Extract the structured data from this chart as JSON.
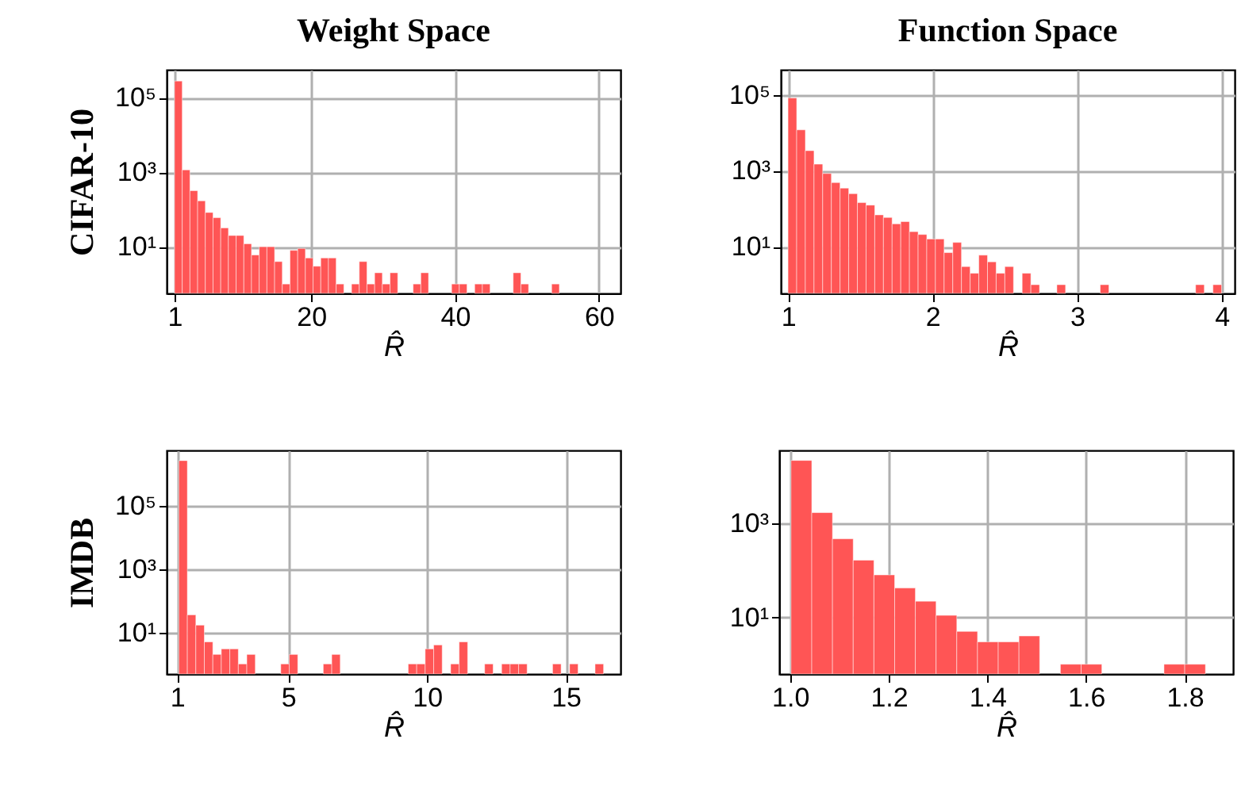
{
  "chart_data": [
    {
      "type": "histogram",
      "title": "Weight Space",
      "ylabel": "CIFAR-10",
      "xlabel": "R̂",
      "color": "#ff5555",
      "log": true,
      "grid": true,
      "bins": [
        1.0,
        2.07,
        3.14,
        4.21,
        5.28,
        6.35,
        7.42,
        8.49,
        9.56,
        10.63,
        11.7,
        12.77,
        13.84,
        14.91,
        15.98,
        17.05,
        18.12,
        19.19,
        20.26,
        21.33,
        22.4,
        23.47,
        24.54,
        25.61,
        26.68,
        27.75,
        28.82,
        29.89,
        30.96,
        32.03,
        33.1,
        34.17,
        35.24,
        36.31,
        37.38,
        38.45,
        39.52,
        40.59,
        41.66,
        42.73,
        43.8,
        44.87,
        45.94,
        47.01,
        48.08,
        49.15,
        50.22,
        51.29,
        52.36,
        53.43,
        54.5
      ],
      "values": [
        280000,
        1150,
        320,
        170,
        83,
        60,
        32,
        20,
        20,
        12,
        6,
        10,
        10,
        4,
        1,
        8,
        9,
        5,
        3,
        5,
        5,
        1,
        null,
        1,
        4,
        1,
        2,
        1,
        2,
        null,
        null,
        1,
        2,
        null,
        null,
        null,
        1,
        1,
        null,
        1,
        1,
        null,
        null,
        null,
        2,
        1,
        null,
        null,
        null,
        1
      ],
      "xlim": [
        -0.1,
        63
      ],
      "xticks": [
        1,
        20,
        40,
        60
      ],
      "ylim": [
        0.56,
        560000
      ],
      "yticks": [
        {
          "value": 10,
          "label": "10¹"
        },
        {
          "value": 1000,
          "label": "10³"
        },
        {
          "value": 100000,
          "label": "10⁵"
        }
      ]
    },
    {
      "type": "histogram",
      "title": "Function Space",
      "xlabel": "R̂",
      "color": "#ff5555",
      "log": true,
      "grid": true,
      "bins": [
        1.0,
        1.06,
        1.12,
        1.18,
        1.24,
        1.3,
        1.36,
        1.42,
        1.48,
        1.54,
        1.6,
        1.66,
        1.72,
        1.78,
        1.84,
        1.9,
        1.96,
        2.02,
        2.08,
        2.14,
        2.2,
        2.26,
        2.32,
        2.38,
        2.44,
        2.5,
        2.56,
        2.62,
        2.68,
        2.74,
        2.8,
        2.86,
        2.92,
        2.98,
        3.04,
        3.1,
        3.16,
        3.22,
        3.28,
        3.34,
        3.4,
        3.46,
        3.52,
        3.58,
        3.64,
        3.7,
        3.76,
        3.82,
        3.88,
        3.94,
        4.0
      ],
      "values": [
        83000,
        12000,
        3400,
        1500,
        850,
        490,
        350,
        250,
        145,
        125,
        69,
        59,
        40,
        46,
        25,
        21,
        16,
        16,
        7,
        13,
        3,
        2,
        6,
        4,
        2,
        3,
        null,
        2,
        1,
        null,
        null,
        1,
        null,
        null,
        null,
        null,
        1,
        null,
        null,
        null,
        null,
        null,
        null,
        null,
        null,
        null,
        null,
        1,
        null,
        1
      ],
      "xlim": [
        0.95,
        4.09
      ],
      "xticks": [
        1,
        2,
        3,
        4
      ],
      "ylim": [
        0.59,
        460000
      ],
      "yticks": [
        {
          "value": 10,
          "label": "10¹"
        },
        {
          "value": 1000,
          "label": "10³"
        },
        {
          "value": 100000,
          "label": "10⁵"
        }
      ]
    },
    {
      "type": "histogram",
      "ylabel": "IMDB",
      "xlabel": "R̂",
      "color": "#ff5555",
      "log": true,
      "grid": true,
      "bins": [
        1.06,
        1.366,
        1.672,
        1.978,
        2.284,
        2.59,
        2.896,
        3.202,
        3.508,
        3.814,
        4.12,
        4.426,
        4.732,
        5.038,
        5.344,
        5.65,
        5.956,
        6.262,
        6.568,
        6.874,
        7.18,
        7.486,
        7.792,
        8.098,
        8.404,
        8.71,
        9.016,
        9.322,
        9.628,
        9.934,
        10.24,
        10.546,
        10.852,
        11.158,
        11.464,
        11.77,
        12.076,
        12.382,
        12.688,
        12.994,
        13.3,
        13.606,
        13.912,
        14.218,
        14.524,
        14.83,
        15.136,
        15.442,
        15.748,
        16.054,
        16.36
      ],
      "values": [
        2800000,
        36,
        17,
        5,
        2,
        3,
        3,
        1,
        2,
        null,
        null,
        null,
        1,
        2,
        null,
        null,
        null,
        1,
        2,
        null,
        null,
        null,
        null,
        null,
        null,
        null,
        null,
        1,
        1,
        3,
        4,
        null,
        1,
        5,
        null,
        null,
        1,
        null,
        1,
        1,
        1,
        null,
        null,
        null,
        1,
        null,
        1,
        null,
        null,
        1
      ],
      "xlim": [
        0.62,
        16.97
      ],
      "xticks": [
        1,
        5,
        10,
        15
      ],
      "ylim": [
        0.48,
        5900000
      ],
      "yticks": [
        {
          "value": 10,
          "label": "10¹"
        },
        {
          "value": 1000,
          "label": "10³"
        },
        {
          "value": 100000,
          "label": "10⁵"
        }
      ]
    },
    {
      "type": "histogram",
      "xlabel": "R̂",
      "color": "#ff5555",
      "log": true,
      "grid": true,
      "bins": [
        1.002,
        1.044,
        1.086,
        1.128,
        1.17,
        1.212,
        1.254,
        1.296,
        1.338,
        1.38,
        1.422,
        1.464,
        1.506,
        1.548,
        1.59,
        1.632,
        1.674,
        1.716,
        1.758,
        1.8,
        1.842
      ],
      "values": [
        22000,
        1700,
        470,
        165,
        80,
        42,
        22,
        11,
        5,
        3,
        3,
        4,
        null,
        1,
        1,
        null,
        null,
        null,
        1,
        1
      ],
      "xlim": [
        0.978,
        1.898
      ],
      "xticks": [
        {
          "value": 1.0,
          "label": "1.0"
        },
        {
          "value": 1.2,
          "label": "1.2"
        },
        {
          "value": 1.4,
          "label": "1.4"
        },
        {
          "value": 1.6,
          "label": "1.6"
        },
        {
          "value": 1.8,
          "label": "1.8"
        }
      ],
      "ylim": [
        0.62,
        36000
      ],
      "yticks": [
        {
          "value": 10,
          "label": "10¹"
        },
        {
          "value": 1000,
          "label": "10³"
        }
      ]
    }
  ]
}
